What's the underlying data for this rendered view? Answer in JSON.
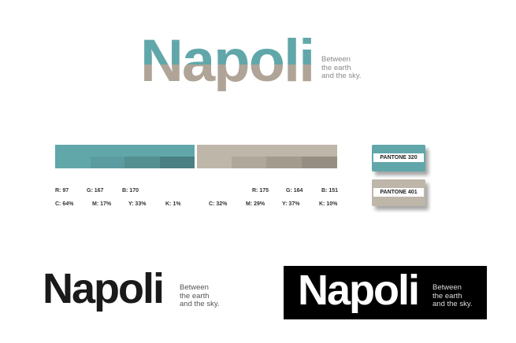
{
  "logos": [
    {
      "name": "Napoli",
      "tagline": [
        "Between",
        "the earth",
        "and the sky."
      ]
    },
    {
      "name": "Napoli",
      "tagline": [
        "Between",
        "the earth",
        "and the sky."
      ]
    },
    {
      "name": "Napoli",
      "tagline": [
        "Between",
        "the earth",
        "and the sky."
      ]
    }
  ],
  "colors": [
    {
      "rgb": [
        "R: 97",
        "G: 167",
        "B: 170"
      ],
      "cmyk": [
        "C: 64%",
        "M: 17%",
        "Y: 33%",
        "K: 1%"
      ],
      "pantone": "PANTONE 320"
    },
    {
      "rgb": [
        "R: 175",
        "G: 164",
        "B: 151"
      ],
      "cmyk": [
        "C: 32%",
        "M: 29%",
        "Y: 37%",
        "K: 10%"
      ],
      "pantone": "PANTONE 401"
    }
  ]
}
